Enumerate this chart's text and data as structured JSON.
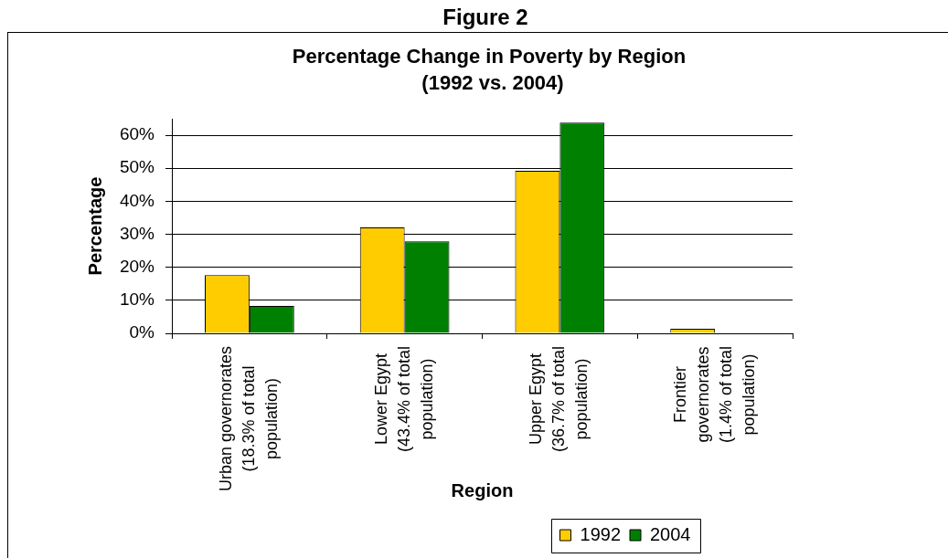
{
  "chart_data": {
    "type": "bar",
    "title": "Percentage Change in Poverty by Region",
    "subtitle": "(1992 vs. 2004)",
    "xlabel": "Region",
    "ylabel": "Percentage",
    "annotations": [
      "Figure 2"
    ],
    "categories": [
      "Urban governorates\n(18.3% of total\npopulation)",
      "Lower Egypt\n(43.4% of total\npopulation)",
      "Upper Egypt\n(36.7% of total\npopulation)",
      "Frontier\ngovernorates\n(1.4% of total\npopulation)"
    ],
    "series": [
      {
        "name": "1992",
        "color": "#ffcc00",
        "values": [
          17.6,
          32.1,
          49.2,
          1.4
        ]
      },
      {
        "name": "2004",
        "color": "#008000",
        "values": [
          8.3,
          27.9,
          63.8,
          null
        ]
      }
    ],
    "ylim": [
      0,
      65
    ],
    "yticks": [
      {
        "value": 0,
        "label": "0%"
      },
      {
        "value": 10,
        "label": "10%"
      },
      {
        "value": 20,
        "label": "20%"
      },
      {
        "value": 30,
        "label": "30%"
      },
      {
        "value": 40,
        "label": "40%"
      },
      {
        "value": 50,
        "label": "50%"
      },
      {
        "value": 60,
        "label": "60%"
      }
    ],
    "grid": "y",
    "legend": "bottom"
  }
}
